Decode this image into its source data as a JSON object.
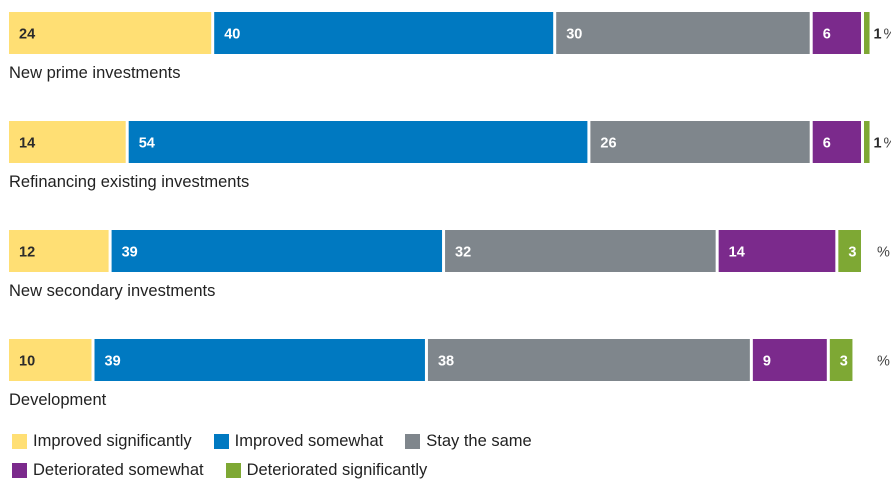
{
  "chart_data": {
    "type": "bar",
    "orientation": "horizontal",
    "stacked": true,
    "unit": "%",
    "categories": [
      "New prime investments",
      "Refinancing existing investments",
      "New secondary investments",
      "Development"
    ],
    "series": [
      {
        "name": "Improved significantly",
        "color": "#FFDF74",
        "values": [
          24,
          14,
          12,
          10
        ]
      },
      {
        "name": "Improved somewhat",
        "color": "#0079C1",
        "values": [
          40,
          54,
          39,
          39
        ]
      },
      {
        "name": "Stay the same",
        "color": "#7F868C",
        "values": [
          30,
          26,
          32,
          38
        ]
      },
      {
        "name": "Deteriorated somewhat",
        "color": "#7B2A8C",
        "values": [
          6,
          6,
          14,
          9
        ]
      },
      {
        "name": "Deteriorated significantly",
        "color": "#7EA834",
        "values": [
          1,
          1,
          3,
          3
        ]
      }
    ],
    "legend_position": "bottom",
    "grid": false
  }
}
